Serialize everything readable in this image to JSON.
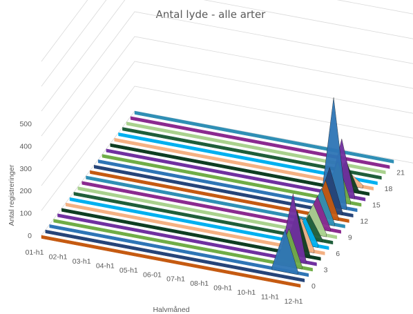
{
  "chart_data": {
    "type": "area",
    "projection": "3d",
    "title": "Antal lyde - alle arter",
    "xlabel": "Halvmåned",
    "ylabel": "Antal registreringer",
    "zlabel": "",
    "categories": [
      "01-h1",
      "02-h1",
      "03-h1",
      "04-h1",
      "05-h1",
      "06-01",
      "07-h1",
      "08-h1",
      "09-h1",
      "10-h1",
      "11-h1",
      "12-h1"
    ],
    "z_ticks": [
      "0",
      "3",
      "6",
      "9",
      "12",
      "15",
      "18",
      "21"
    ],
    "y_ticks": [
      "0",
      "100",
      "200",
      "300",
      "400",
      "500"
    ],
    "ylim": [
      0,
      500
    ],
    "grid": true,
    "legend": "none",
    "series_colors": [
      "#c55a11",
      "#264478",
      "#2e75b6",
      "#70ad47",
      "#7030a0",
      "#0e3d22",
      "#f4b183",
      "#00b0f0",
      "#1f5e3a",
      "#a9d18e",
      "#8b2a8f",
      "#2f8fb5"
    ],
    "series": [
      {
        "hour": 0,
        "values": [
          0,
          0,
          0,
          0,
          0,
          0,
          0,
          0,
          0,
          0,
          0,
          0
        ]
      },
      {
        "hour": 1,
        "values": [
          0,
          0,
          0,
          0,
          0,
          0,
          0,
          0,
          0,
          0,
          0,
          0
        ]
      },
      {
        "hour": 2,
        "values": [
          0,
          0,
          0,
          0,
          0,
          0,
          0,
          0,
          0,
          0,
          0,
          0
        ]
      },
      {
        "hour": 3,
        "values": [
          0,
          0,
          0,
          0,
          0,
          0,
          0,
          0,
          0,
          0,
          0,
          0
        ]
      },
      {
        "hour": 4,
        "values": [
          0,
          0,
          0,
          0,
          0,
          0,
          0,
          0,
          0,
          0,
          0,
          0
        ]
      },
      {
        "hour": 5,
        "values": [
          0,
          0,
          0,
          0,
          0,
          0,
          0,
          0,
          0,
          0,
          0,
          0
        ]
      },
      {
        "hour": 6,
        "values": [
          0,
          0,
          0,
          0,
          0,
          0,
          0,
          0,
          0,
          0,
          0,
          0
        ]
      },
      {
        "hour": 7,
        "values": [
          0,
          0,
          0,
          0,
          0,
          0,
          0,
          0,
          0,
          0,
          0,
          0
        ]
      },
      {
        "hour": 8,
        "values": [
          0,
          0,
          0,
          0,
          0,
          0,
          0,
          0,
          0,
          0,
          0,
          0
        ]
      },
      {
        "hour": 9,
        "values": [
          0,
          0,
          0,
          0,
          0,
          0,
          0,
          0,
          0,
          0,
          0,
          0
        ]
      },
      {
        "hour": 10,
        "values": [
          0,
          0,
          0,
          0,
          0,
          0,
          0,
          0,
          0,
          0,
          0,
          0
        ]
      },
      {
        "hour": 11,
        "values": [
          0,
          0,
          0,
          0,
          0,
          0,
          0,
          0,
          0,
          0,
          0,
          0
        ]
      },
      {
        "hour": 12,
        "values": [
          0,
          0,
          0,
          0,
          0,
          0,
          0,
          0,
          0,
          0,
          0,
          0
        ]
      },
      {
        "hour": 13,
        "values": [
          0,
          0,
          0,
          0,
          0,
          0,
          0,
          0,
          0,
          0,
          0,
          0
        ]
      },
      {
        "hour": 14,
        "values": [
          0,
          0,
          0,
          0,
          0,
          0,
          0,
          0,
          0,
          0,
          0,
          0
        ]
      },
      {
        "hour": 15,
        "values": [
          0,
          0,
          0,
          0,
          0,
          0,
          0,
          0,
          0,
          0,
          0,
          0
        ]
      },
      {
        "hour": 16,
        "values": [
          0,
          0,
          0,
          0,
          0,
          0,
          0,
          0,
          0,
          0,
          0,
          0
        ]
      },
      {
        "hour": 17,
        "values": [
          0,
          0,
          0,
          0,
          0,
          0,
          0,
          0,
          0,
          0,
          0,
          0
        ]
      },
      {
        "hour": 18,
        "values": [
          0,
          0,
          0,
          0,
          0,
          0,
          0,
          0,
          0,
          0,
          0,
          0
        ]
      },
      {
        "hour": 19,
        "values": [
          0,
          0,
          0,
          0,
          0,
          0,
          0,
          0,
          0,
          0,
          0,
          0
        ]
      },
      {
        "hour": 20,
        "values": [
          0,
          0,
          0,
          0,
          0,
          0,
          0,
          0,
          0,
          0,
          0,
          0
        ]
      },
      {
        "hour": 21,
        "values": [
          0,
          0,
          0,
          0,
          0,
          0,
          0,
          0,
          0,
          0,
          0,
          0
        ]
      },
      {
        "hour": 22,
        "values": [
          0,
          0,
          0,
          0,
          0,
          0,
          0,
          0,
          0,
          0,
          0,
          0
        ]
      },
      {
        "hour": 23,
        "values": [
          0,
          0,
          0,
          0,
          0,
          0,
          0,
          0,
          0,
          0,
          0,
          0
        ]
      }
    ],
    "peaks": [
      {
        "hour": 2,
        "values": [
          0,
          0,
          0,
          0,
          0,
          0,
          0,
          0,
          0,
          0,
          160,
          0
        ]
      },
      {
        "hour": 3,
        "values": [
          0,
          0,
          0,
          0,
          0,
          0,
          0,
          0,
          0,
          0,
          140,
          0
        ]
      },
      {
        "hour": 4,
        "values": [
          0,
          0,
          0,
          0,
          0,
          0,
          0,
          0,
          0,
          0,
          260,
          0
        ]
      },
      {
        "hour": 5,
        "values": [
          0,
          0,
          0,
          0,
          0,
          0,
          0,
          0,
          0,
          0,
          170,
          0
        ]
      },
      {
        "hour": 6,
        "values": [
          0,
          0,
          0,
          0,
          0,
          0,
          0,
          0,
          0,
          0,
          120,
          0
        ]
      },
      {
        "hour": 7,
        "values": [
          0,
          0,
          0,
          0,
          0,
          0,
          0,
          0,
          0,
          0,
          100,
          0
        ]
      },
      {
        "hour": 8,
        "values": [
          0,
          0,
          0,
          0,
          0,
          0,
          0,
          0,
          0,
          0,
          90,
          0
        ]
      },
      {
        "hour": 9,
        "values": [
          0,
          0,
          0,
          0,
          0,
          0,
          0,
          0,
          0,
          0,
          110,
          0
        ]
      },
      {
        "hour": 10,
        "values": [
          0,
          0,
          0,
          0,
          0,
          0,
          0,
          0,
          0,
          0,
          120,
          0
        ]
      },
      {
        "hour": 11,
        "values": [
          0,
          0,
          0,
          0,
          0,
          0,
          0,
          0,
          0,
          0,
          130,
          0
        ]
      },
      {
        "hour": 12,
        "values": [
          0,
          0,
          0,
          0,
          0,
          0,
          0,
          0,
          0,
          0,
          140,
          0
        ]
      },
      {
        "hour": 13,
        "values": [
          0,
          0,
          0,
          0,
          0,
          0,
          0,
          0,
          0,
          0,
          170,
          0
        ]
      },
      {
        "hour": 14,
        "values": [
          0,
          0,
          0,
          0,
          0,
          0,
          0,
          0,
          0,
          0,
          430,
          0
        ]
      },
      {
        "hour": 15,
        "values": [
          0,
          0,
          0,
          0,
          0,
          0,
          0,
          0,
          0,
          0,
          150,
          0
        ]
      },
      {
        "hour": 16,
        "values": [
          0,
          0,
          0,
          0,
          0,
          0,
          0,
          0,
          0,
          0,
          220,
          0
        ]
      },
      {
        "hour": 17,
        "values": [
          0,
          0,
          0,
          0,
          0,
          0,
          0,
          0,
          0,
          0,
          110,
          0
        ]
      },
      {
        "hour": 18,
        "values": [
          0,
          0,
          0,
          0,
          0,
          0,
          0,
          0,
          0,
          0,
          40,
          0
        ]
      }
    ]
  }
}
